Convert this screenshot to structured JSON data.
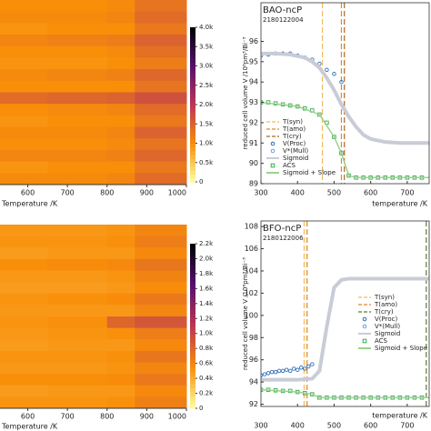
{
  "chart_data": [
    {
      "type": "heatmap",
      "xlabel": "Temperature /K",
      "xlim": [
        530,
        1000
      ],
      "xticks": [
        600,
        700,
        800,
        900,
        1000
      ],
      "x_bins": [
        530,
        650,
        800,
        870,
        1000
      ],
      "values": [
        [
          1000,
          1000,
          1050,
          1300
        ],
        [
          1050,
          1050,
          1100,
          1400
        ],
        [
          950,
          1000,
          1000,
          1250
        ],
        [
          1100,
          1150,
          1200,
          1500
        ],
        [
          1000,
          1000,
          1050,
          1350
        ],
        [
          950,
          950,
          1000,
          1200
        ],
        [
          1050,
          1100,
          1150,
          1450
        ],
        [
          1000,
          1000,
          1000,
          1300
        ],
        [
          1400,
          1450,
          1500,
          1700
        ],
        [
          1000,
          1050,
          1100,
          1400
        ],
        [
          950,
          1000,
          1000,
          1250
        ],
        [
          1050,
          1050,
          1100,
          1500
        ],
        [
          1000,
          1000,
          1050,
          1300
        ],
        [
          1100,
          1100,
          1150,
          1450
        ],
        [
          950,
          1000,
          1000,
          1250
        ],
        [
          1050,
          1050,
          1100,
          1400
        ]
      ],
      "colormap": [
        "#fcffa4",
        "#f98e09",
        "#bc3754",
        "#57106e",
        "#000004"
      ],
      "clim": [
        0,
        4000
      ],
      "cticks": [
        0,
        {
          "value": 500,
          "label": "0.5k"
        },
        {
          "value": 1000,
          "label": "1.0k"
        },
        {
          "value": 1500,
          "label": "1.5k"
        },
        {
          "value": 2000,
          "label": "2.0k"
        },
        {
          "value": 2500,
          "label": "2.5k"
        },
        {
          "value": 3000,
          "label": "3.0k"
        },
        {
          "value": 3500,
          "label": "3.5k"
        },
        {
          "value": 4000,
          "label": "4.0k"
        }
      ]
    },
    {
      "type": "line",
      "title": "BAO-ncP",
      "subtitle": "2180122004",
      "xlabel": "temperature /K",
      "ylabel": "reduced cell volume V /10⁶pm³/Bi⁻³",
      "xlim": [
        300,
        760
      ],
      "xticks": [
        300,
        400,
        500,
        600,
        700
      ],
      "ylim": [
        89,
        97.9
      ],
      "yticks": [
        89,
        90,
        91,
        92,
        93,
        94,
        95,
        96
      ],
      "legend": "lower left",
      "series": [
        {
          "name": "T(syn)",
          "style": "vline",
          "color": "#f5b95a",
          "x": 468
        },
        {
          "name": "T(amo)",
          "style": "vline",
          "color": "#d98a2b",
          "x": 520
        },
        {
          "name": "T(cry)",
          "style": "vline",
          "color": "#b5651d",
          "x": 528
        },
        {
          "name": "V(Proc)",
          "style": "circle",
          "color": "#2f6db5",
          "x": [
            300,
            320,
            340,
            360,
            380,
            400,
            420,
            440,
            460,
            480,
            500,
            520
          ],
          "values": [
            95.3,
            95.35,
            95.4,
            95.4,
            95.4,
            95.3,
            95.2,
            95.1,
            94.9,
            94.6,
            94.4,
            94.0
          ]
        },
        {
          "name": "V*(Mull)",
          "style": "circle",
          "color": "#6aa0d8",
          "x": [],
          "values": []
        },
        {
          "name": "Sigmoid",
          "style": "line",
          "color": "#c9ccd6",
          "x": [
            300,
            340,
            380,
            420,
            440,
            460,
            480,
            500,
            520,
            540,
            560,
            580,
            600,
            640,
            680,
            720,
            760
          ],
          "values": [
            95.4,
            95.4,
            95.35,
            95.2,
            95.0,
            94.7,
            94.2,
            93.6,
            92.9,
            92.3,
            91.8,
            91.4,
            91.2,
            91.05,
            91.0,
            91.0,
            91.0
          ]
        },
        {
          "name": "ACS",
          "style": "square",
          "color": "#3aa655",
          "x": [
            300,
            320,
            340,
            360,
            380,
            400,
            420,
            440,
            460,
            480,
            500,
            520,
            540,
            560,
            580,
            600,
            620,
            640,
            660,
            680,
            700,
            720,
            740
          ],
          "values": [
            93.0,
            93.0,
            92.95,
            92.9,
            92.85,
            92.8,
            92.7,
            92.6,
            92.4,
            92.0,
            91.3,
            90.5,
            89.4,
            89.3,
            89.3,
            89.3,
            89.3,
            89.3,
            89.3,
            89.3,
            89.3,
            89.3,
            89.3
          ]
        },
        {
          "name": "Sigmoid + Slope",
          "style": "line",
          "color": "#9ad48a",
          "x": [
            300,
            400,
            460,
            500,
            520,
            540,
            560,
            760
          ],
          "values": [
            93.0,
            92.8,
            92.4,
            91.3,
            90.5,
            89.4,
            89.3,
            89.3
          ]
        }
      ]
    },
    {
      "type": "heatmap",
      "xlabel": "Temperature /K",
      "xlim": [
        530,
        1000
      ],
      "xticks": [
        600,
        700,
        800,
        900,
        1000
      ],
      "x_bins": [
        530,
        650,
        800,
        870,
        1000
      ],
      "values": [
        [
          500,
          500,
          520,
          600
        ],
        [
          520,
          520,
          540,
          650
        ],
        [
          480,
          500,
          500,
          580
        ],
        [
          550,
          560,
          580,
          700
        ],
        [
          500,
          500,
          520,
          620
        ],
        [
          480,
          480,
          500,
          560
        ],
        [
          520,
          540,
          560,
          680
        ],
        [
          500,
          500,
          500,
          600
        ],
        [
          520,
          540,
          800,
          900
        ],
        [
          500,
          520,
          540,
          650
        ],
        [
          480,
          500,
          500,
          580
        ],
        [
          520,
          520,
          540,
          700
        ],
        [
          500,
          500,
          520,
          600
        ],
        [
          550,
          550,
          560,
          680
        ],
        [
          480,
          500,
          500,
          580
        ],
        [
          520,
          520,
          540,
          640
        ]
      ],
      "colormap": [
        "#fcffa4",
        "#f98e09",
        "#bc3754",
        "#57106e",
        "#000004"
      ],
      "clim": [
        0,
        2200
      ],
      "cticks": [
        0,
        {
          "value": 200,
          "label": "0.2k"
        },
        {
          "value": 400,
          "label": "0.4k"
        },
        {
          "value": 600,
          "label": "0.6k"
        },
        {
          "value": 800,
          "label": "0.8k"
        },
        {
          "value": 1000,
          "label": "1.0k"
        },
        {
          "value": 1200,
          "label": "1.2k"
        },
        {
          "value": 1400,
          "label": "1.4k"
        },
        {
          "value": 1600,
          "label": "1.6k"
        },
        {
          "value": 1800,
          "label": "1.8k"
        },
        {
          "value": 2000,
          "label": "2.0k"
        },
        {
          "value": 2200,
          "label": "2.2k"
        }
      ]
    },
    {
      "type": "line",
      "title": "BFO-ncP",
      "subtitle": "2180122006",
      "xlabel": "temperature /K",
      "ylabel": "reduced cell volume V /10⁶pm³/Bi⁻³",
      "xlim": [
        300,
        760
      ],
      "xticks": [
        300,
        400,
        500,
        600,
        700
      ],
      "ylim": [
        91.8,
        108.5
      ],
      "yticks": [
        92,
        94,
        96,
        98,
        100,
        102,
        104,
        106,
        108
      ],
      "legend": "center right",
      "series": [
        {
          "name": "T(syn)",
          "style": "vline",
          "color": "#f5b95a",
          "x": 418
        },
        {
          "name": "T(amo)",
          "style": "vline",
          "color": "#d98a2b",
          "x": 426
        },
        {
          "name": "T(cry)",
          "style": "vline",
          "color": "#5a7a3a",
          "x": 752
        },
        {
          "name": "V(Proc)",
          "style": "circle",
          "color": "#2f6db5",
          "x": [
            300,
            310,
            320,
            330,
            340,
            350,
            360,
            370,
            380,
            390,
            400,
            410,
            420,
            430,
            440
          ],
          "values": [
            94.6,
            94.7,
            94.8,
            94.9,
            94.9,
            95.0,
            95.0,
            95.1,
            95.0,
            95.2,
            95.1,
            95.3,
            95.2,
            95.4,
            95.6
          ]
        },
        {
          "name": "V*(Mull)",
          "style": "circle",
          "color": "#6aa0d8",
          "x": [],
          "values": []
        },
        {
          "name": "Sigmoid",
          "style": "line",
          "color": "#c9ccd6",
          "x": [
            300,
            400,
            440,
            460,
            480,
            500,
            520,
            540,
            760
          ],
          "values": [
            94.2,
            94.2,
            94.3,
            95.0,
            99.0,
            102.5,
            103.2,
            103.3,
            103.3
          ]
        },
        {
          "name": "ACS",
          "style": "square",
          "color": "#3aa655",
          "x": [
            300,
            320,
            340,
            360,
            380,
            400,
            420,
            440,
            460,
            480,
            500,
            520,
            540,
            560,
            580,
            600,
            620,
            640,
            660,
            680,
            700,
            720,
            740
          ],
          "values": [
            93.3,
            93.3,
            93.25,
            93.2,
            93.2,
            93.1,
            93.0,
            92.9,
            92.6,
            92.6,
            92.6,
            92.6,
            92.6,
            92.6,
            92.6,
            92.6,
            92.6,
            92.6,
            92.6,
            92.6,
            92.6,
            92.6,
            92.6
          ]
        },
        {
          "name": "Sigmoid + Slope",
          "style": "line",
          "color": "#9ad48a",
          "x": [
            300,
            400,
            440,
            460,
            760
          ],
          "values": [
            93.3,
            93.1,
            92.9,
            92.6,
            92.6
          ]
        }
      ]
    }
  ]
}
